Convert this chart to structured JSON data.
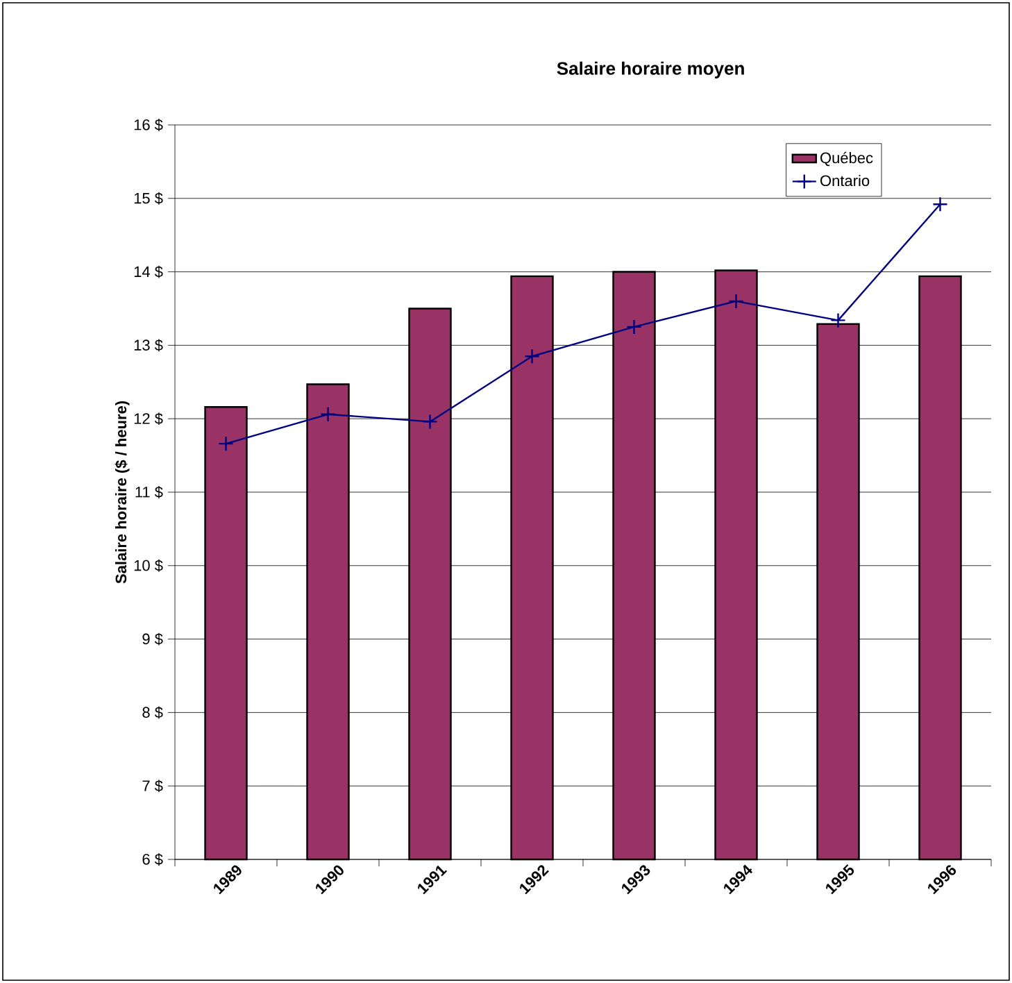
{
  "chart_data": {
    "type": "bar",
    "title": "Salaire horaire moyen",
    "ylabel": "Salaire horaire ($ / heure)",
    "categories": [
      "1989",
      "1990",
      "1991",
      "1992",
      "1993",
      "1994",
      "1995",
      "1996"
    ],
    "series": [
      {
        "name": "Québec",
        "color": "#993366",
        "values": [
          12.16,
          12.47,
          13.5,
          13.94,
          14.0,
          14.02,
          13.29,
          13.94
        ]
      },
      {
        "name": "Ontario",
        "type": "line",
        "color": "#000080",
        "marker": "cross",
        "values": [
          11.66,
          12.06,
          11.96,
          12.85,
          13.25,
          13.6,
          13.34,
          14.92
        ]
      }
    ],
    "ylim": [
      6,
      16
    ],
    "yticks": [
      {
        "value": 6,
        "label": "6 $"
      },
      {
        "value": 7,
        "label": "7 $"
      },
      {
        "value": 8,
        "label": "8 $"
      },
      {
        "value": 9,
        "label": "9 $"
      },
      {
        "value": 10,
        "label": "10 $"
      },
      {
        "value": 11,
        "label": "11 $"
      },
      {
        "value": 12,
        "label": "12 $"
      },
      {
        "value": 13,
        "label": "13 $"
      },
      {
        "value": 14,
        "label": "14 $"
      },
      {
        "value": 15,
        "label": "15 $"
      },
      {
        "value": 16,
        "label": "16 $"
      }
    ],
    "grid": "y",
    "legend": "top right"
  }
}
